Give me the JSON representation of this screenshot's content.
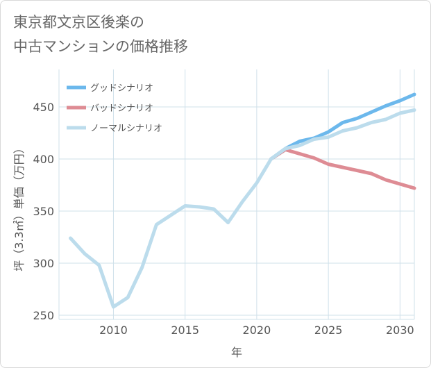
{
  "title_line1": "東京都文京区後楽の",
  "title_line2": "中古マンションの価格推移",
  "chart_data": {
    "type": "line",
    "xlabel": "年",
    "ylabel": "坪（3.3㎡）単価（万円）",
    "xlim": [
      2006.2,
      2031
    ],
    "ylim": [
      246,
      486
    ],
    "xticks": [
      2010,
      2015,
      2020,
      2025,
      2030
    ],
    "yticks": [
      250,
      300,
      350,
      400,
      450
    ],
    "grid": true,
    "legend_position": "top-left",
    "series": [
      {
        "name": "グッドシナリオ",
        "color": "#6cb8ec",
        "x": [
          2021,
          2022,
          2023,
          2024,
          2025,
          2026,
          2027,
          2028,
          2029,
          2030,
          2031
        ],
        "values": [
          400,
          410,
          417,
          420,
          426,
          435,
          439,
          445,
          451,
          456,
          462
        ]
      },
      {
        "name": "バッドシナリオ",
        "color": "#de8c94",
        "x": [
          2021,
          2022,
          2023,
          2024,
          2025,
          2026,
          2027,
          2028,
          2029,
          2030,
          2031
        ],
        "values": [
          400,
          409,
          405,
          401,
          395,
          392,
          389,
          386,
          380,
          376,
          372
        ]
      },
      {
        "name": "ノーマルシナリオ",
        "color": "#bcdcec",
        "x": [
          2007,
          2008,
          2009,
          2010,
          2011,
          2012,
          2013,
          2014,
          2015,
          2016,
          2017,
          2018,
          2019,
          2020,
          2021,
          2022,
          2023,
          2024,
          2025,
          2026,
          2027,
          2028,
          2029,
          2030,
          2031
        ],
        "values": [
          324,
          309,
          298,
          258,
          267,
          296,
          337,
          346,
          355,
          354,
          352,
          339,
          359,
          377,
          400,
          410,
          413,
          419,
          421,
          427,
          430,
          435,
          438,
          444,
          447
        ]
      }
    ]
  }
}
